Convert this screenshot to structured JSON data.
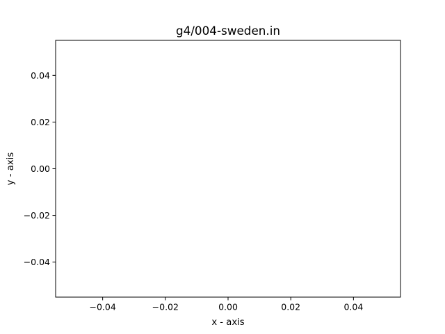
{
  "chart_data": {
    "type": "scatter",
    "title": "g4/004-sweden.in",
    "xlabel": "x - axis",
    "ylabel": "y - axis",
    "xlim": [
      -0.055,
      0.055
    ],
    "ylim": [
      -0.055,
      0.055
    ],
    "x_ticks": [
      -0.04,
      -0.02,
      0.0,
      0.02,
      0.04
    ],
    "x_tick_labels": [
      "−0.04",
      "−0.02",
      "0.00",
      "0.02",
      "0.04"
    ],
    "y_ticks": [
      -0.04,
      -0.02,
      0.0,
      0.02,
      0.04
    ],
    "y_tick_labels": [
      "−0.04",
      "−0.02",
      "0.00",
      "0.02",
      "0.04"
    ],
    "grid": false,
    "series": [
      {
        "x": [],
        "y": []
      }
    ]
  }
}
